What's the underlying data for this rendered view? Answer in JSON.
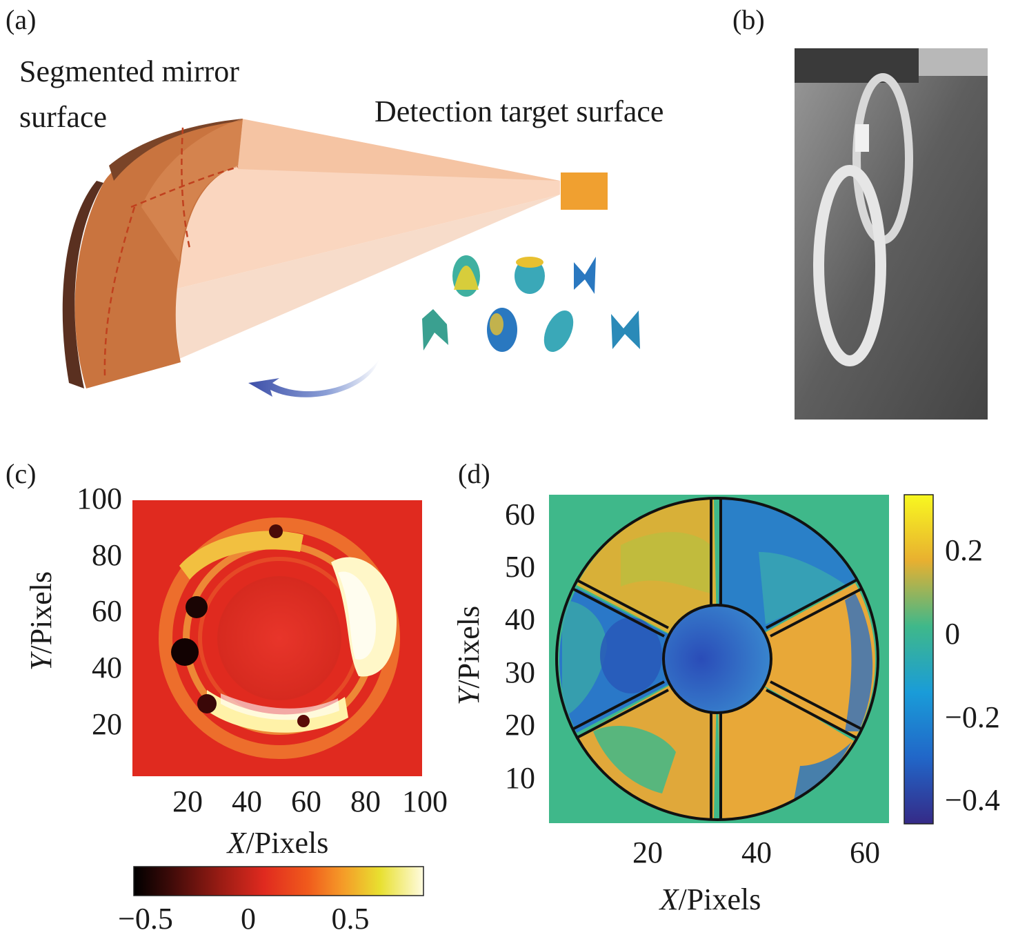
{
  "panels": {
    "a": {
      "label": "(a)",
      "mirror_label_line1": "Segmented mirror",
      "mirror_label_line2": "surface",
      "target_label": "Detection target surface"
    },
    "b": {
      "label": "(b)"
    },
    "c": {
      "label": "(c)",
      "y_axis_var": "Y",
      "y_axis_rest": "/Pixels",
      "x_axis_var": "X",
      "x_axis_rest": "/Pixels",
      "y_ticks": [
        "100",
        "80",
        "60",
        "40",
        "20"
      ],
      "x_ticks": [
        "20",
        "40",
        "60",
        "80",
        "100"
      ],
      "colorbar_ticks": [
        "−0.5",
        "0",
        "0.5"
      ]
    },
    "d": {
      "label": "(d)",
      "y_axis_var": "Y",
      "y_axis_rest": "/Pixels",
      "x_axis_var": "X",
      "x_axis_rest": "/Pixels",
      "y_ticks": [
        "60",
        "50",
        "40",
        "30",
        "20",
        "10"
      ],
      "x_ticks": [
        "20",
        "40",
        "60"
      ],
      "colorbar_ticks": [
        "0.2",
        "0",
        "−0.2",
        "−0.4"
      ]
    }
  },
  "colors": {
    "mirror_orange": "#c9743f",
    "target_orange": "#f0a030",
    "beam_peach": "#f9cfb4",
    "hot_bg": "#e02a1f",
    "parula_bg": "#3fb88a",
    "parula_yellow": "#f5e020",
    "parula_blue": "#3a3fa0"
  },
  "chart_data": [
    {
      "type": "heatmap",
      "panel": "c",
      "xlabel": "X/Pixels",
      "ylabel": "Y/Pixels",
      "xlim": [
        0,
        100
      ],
      "ylim": [
        0,
        100
      ],
      "x_ticks": [
        20,
        40,
        60,
        80,
        100
      ],
      "y_ticks": [
        20,
        40,
        60,
        80,
        100
      ],
      "colormap": "hot",
      "colorbar": {
        "orientation": "horizontal",
        "placement": "bottom",
        "range": [
          -0.6,
          0.6
        ],
        "ticks": [
          -0.5,
          0,
          0.5
        ]
      }
    },
    {
      "type": "heatmap",
      "panel": "d",
      "xlabel": "X/Pixels",
      "ylabel": "Y/Pixels",
      "xlim": [
        0,
        64
      ],
      "ylim": [
        0,
        64
      ],
      "x_ticks": [
        20,
        40,
        60
      ],
      "y_ticks": [
        10,
        20,
        30,
        40,
        50,
        60
      ],
      "colormap": "parula",
      "colorbar": {
        "orientation": "vertical",
        "placement": "right",
        "range": [
          -0.5,
          0.32
        ],
        "ticks": [
          -0.4,
          -0.2,
          0,
          0.2
        ]
      }
    }
  ]
}
